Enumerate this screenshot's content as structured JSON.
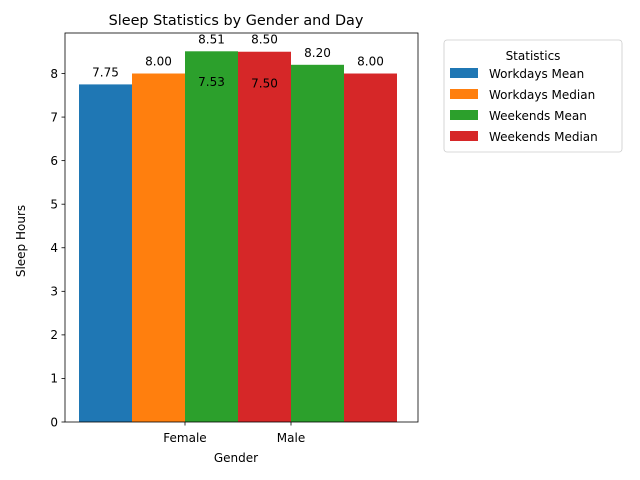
{
  "chart_data": {
    "type": "bar",
    "title": "Sleep Statistics by Gender and Day",
    "xlabel": "Gender",
    "ylabel": "Sleep Hours",
    "categories": [
      "Female",
      "Male"
    ],
    "ylim": [
      0,
      8.93
    ],
    "yticks": [
      0,
      1,
      2,
      3,
      4,
      5,
      6,
      7,
      8
    ],
    "grid": false,
    "legend": {
      "title": "Statistics",
      "placement": "outside-right-top"
    },
    "series": [
      {
        "name": "Workdays Mean",
        "color": "#1f77b4",
        "values": [
          7.75,
          7.53
        ],
        "labels": [
          "7.75",
          "7.53"
        ]
      },
      {
        "name": "Workdays Median",
        "color": "#ff7f0e",
        "values": [
          8.0,
          7.5
        ],
        "labels": [
          "8.00",
          "7.50"
        ]
      },
      {
        "name": "Weekends Mean",
        "color": "#2ca02c",
        "values": [
          8.51,
          8.2
        ],
        "labels": [
          "8.51",
          "8.20"
        ]
      },
      {
        "name": "Weekends Median",
        "color": "#d62728",
        "values": [
          8.5,
          8.0
        ],
        "labels": [
          "8.50",
          "8.00"
        ]
      }
    ]
  }
}
